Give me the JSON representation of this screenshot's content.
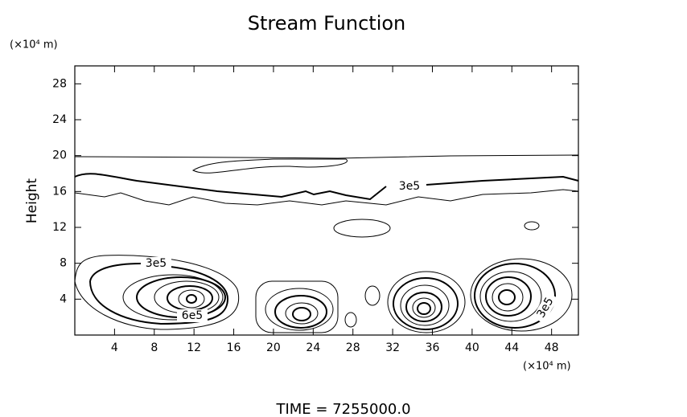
{
  "chart_data": {
    "type": "contour",
    "title": "Stream Function",
    "y_unit": "(×10⁴ m)",
    "x_unit": "(×10⁴ m)",
    "ylabel": "Height",
    "footer": "TIME  =  7255000.0",
    "xlim": [
      0,
      50.7
    ],
    "xticks": [
      4,
      8,
      12,
      16,
      20,
      24,
      28,
      32,
      36,
      40,
      44,
      48
    ],
    "ylim": [
      0,
      30
    ],
    "yticks": [
      4,
      8,
      12,
      16,
      20,
      24,
      28
    ],
    "contour_labels": [
      "3e5",
      "3e5",
      "6e5",
      "3e5"
    ],
    "color": "#000000"
  }
}
